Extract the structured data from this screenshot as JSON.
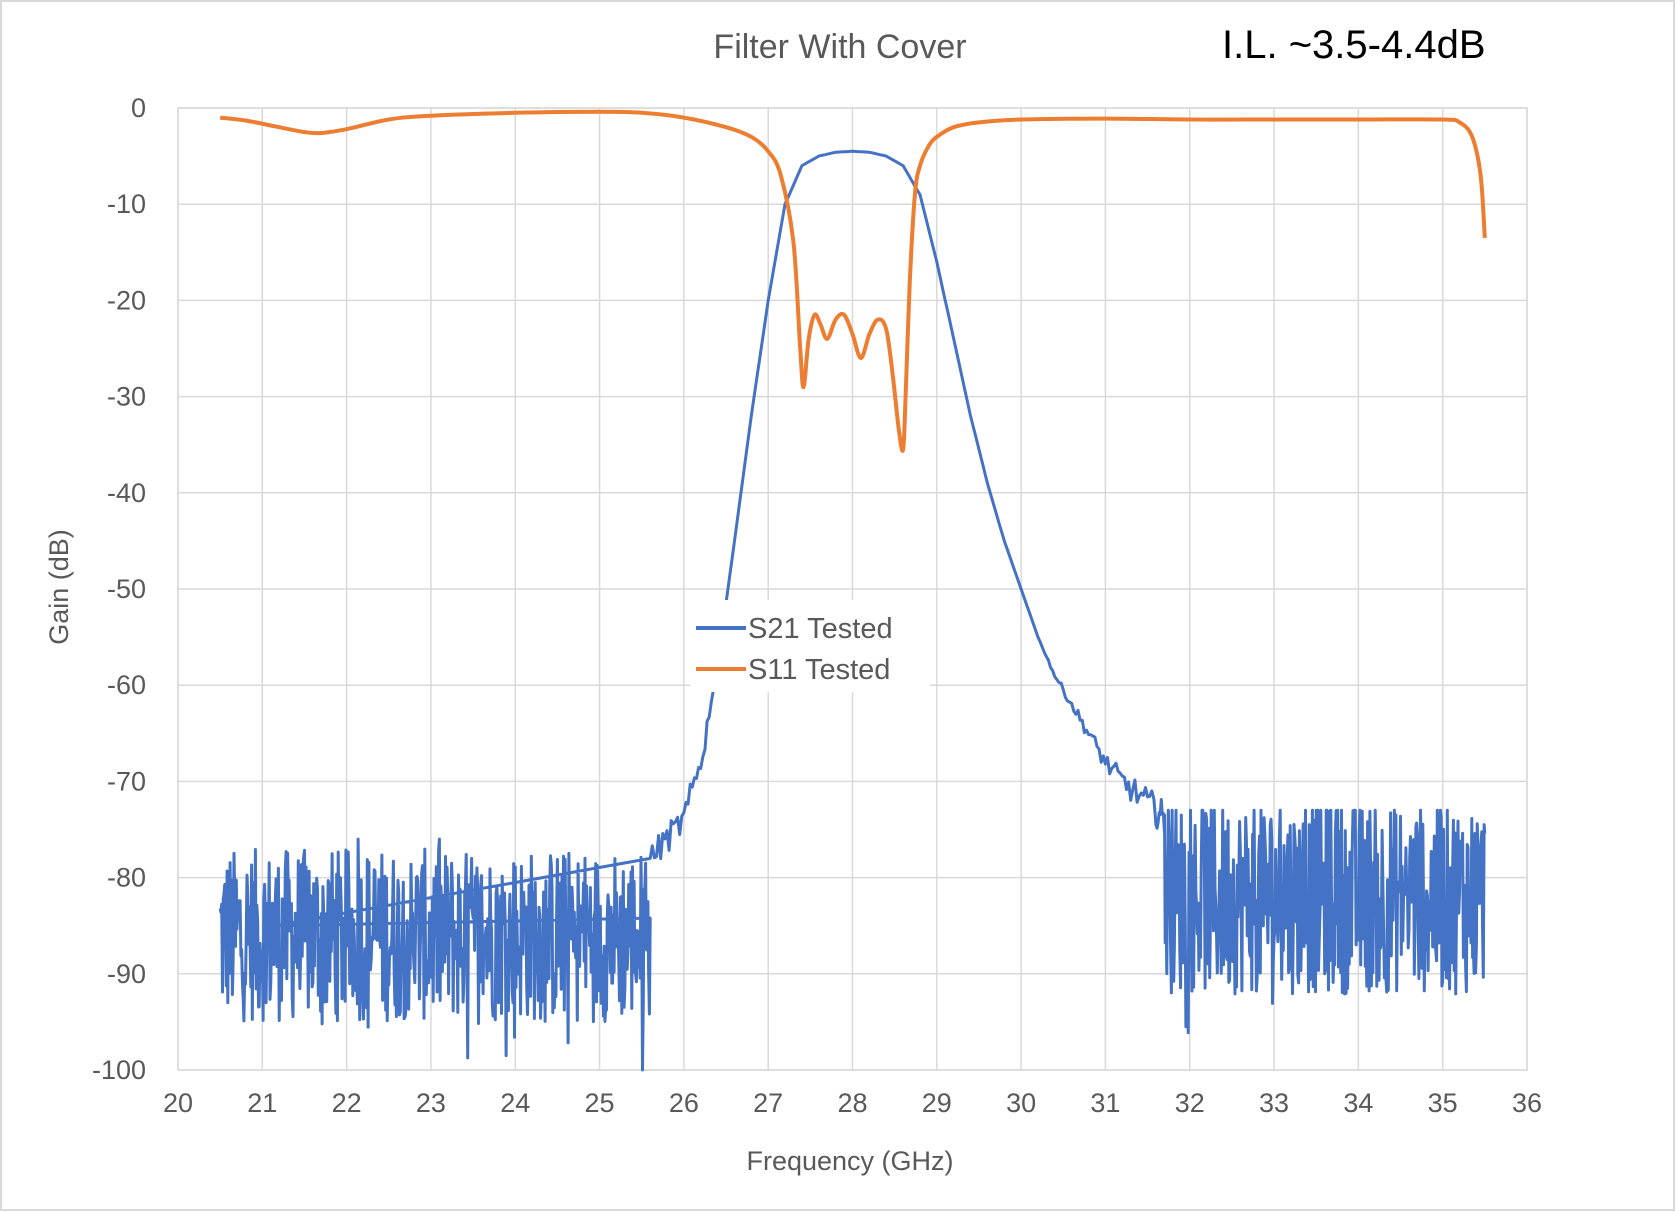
{
  "chart_data": {
    "type": "line",
    "title": "Filter With Cover",
    "annotation": "I.L. ~3.5-4.4dB",
    "xlabel": "Frequency (GHz)",
    "ylabel": "Gain (dB)",
    "xlim": [
      20,
      36
    ],
    "ylim": [
      -100,
      0
    ],
    "xticks": [
      "20",
      "21",
      "22",
      "23",
      "24",
      "25",
      "26",
      "27",
      "28",
      "29",
      "30",
      "31",
      "32",
      "33",
      "34",
      "35",
      "36"
    ],
    "yticks": [
      "0",
      "-10",
      "-20",
      "-30",
      "-40",
      "-50",
      "-60",
      "-70",
      "-80",
      "-90",
      "-100"
    ],
    "grid": true,
    "legend_position": "center",
    "series": [
      {
        "name": "S21 Tested",
        "color": "#4472C4",
        "noise_floor": [
          {
            "x_start": 20.5,
            "x_end": 25.6,
            "min": -100,
            "max": -76,
            "mean": -86
          },
          {
            "x_start": 31.7,
            "x_end": 35.5,
            "min": -100,
            "max": -73,
            "mean": -82
          }
        ],
        "x": [
          20.5,
          25.6,
          25.8,
          26.0,
          26.2,
          26.4,
          26.6,
          26.8,
          27.0,
          27.2,
          27.4,
          27.6,
          27.8,
          28.0,
          28.2,
          28.4,
          28.6,
          28.8,
          29.0,
          29.2,
          29.4,
          29.6,
          29.8,
          30.0,
          30.2,
          30.4,
          30.6,
          30.8,
          31.0,
          31.2,
          31.4,
          31.6,
          31.7
        ],
        "y": [
          -86,
          -78,
          -76,
          -74,
          -68,
          -58,
          -45,
          -32,
          -20,
          -10,
          -6,
          -5,
          -4.6,
          -4.5,
          -4.6,
          -5,
          -6,
          -9,
          -16,
          -24,
          -32,
          -39,
          -45,
          -50,
          -55,
          -59,
          -62,
          -65,
          -68,
          -70,
          -71.5,
          -73,
          -74
        ]
      },
      {
        "name": "S11 Tested",
        "color": "#ED7D31",
        "x": [
          20.5,
          20.8,
          21.2,
          21.5,
          21.7,
          22.0,
          22.5,
          23.0,
          24.0,
          25.0,
          25.5,
          26.0,
          26.5,
          26.8,
          27.0,
          27.15,
          27.3,
          27.38,
          27.42,
          27.48,
          27.55,
          27.62,
          27.7,
          27.8,
          27.9,
          28.0,
          28.1,
          28.2,
          28.3,
          28.4,
          28.48,
          28.55,
          28.6,
          28.63,
          28.68,
          28.74,
          28.8,
          28.9,
          29.0,
          29.2,
          29.5,
          30.0,
          31.0,
          32.0,
          33.0,
          34.0,
          35.0,
          35.2,
          35.35,
          35.45,
          35.5
        ],
        "y": [
          -1.0,
          -1.3,
          -2.0,
          -2.5,
          -2.6,
          -2.2,
          -1.2,
          -0.8,
          -0.5,
          -0.4,
          -0.5,
          -1.0,
          -2.0,
          -3.0,
          -4.5,
          -7.0,
          -14.0,
          -25.0,
          -29.0,
          -24.0,
          -21.5,
          -22.5,
          -24.0,
          -22.0,
          -21.5,
          -23.5,
          -26.0,
          -23.5,
          -22.0,
          -23.0,
          -28.0,
          -33.5,
          -35.5,
          -30.0,
          -18.0,
          -9.0,
          -6.0,
          -4.0,
          -3.0,
          -2.0,
          -1.5,
          -1.2,
          -1.1,
          -1.2,
          -1.2,
          -1.2,
          -1.2,
          -1.5,
          -3.0,
          -7.0,
          -13.5
        ]
      }
    ]
  }
}
